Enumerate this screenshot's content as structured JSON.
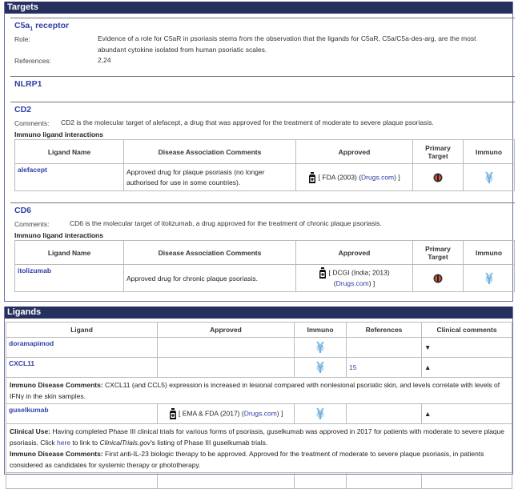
{
  "targets": {
    "title": "Targets",
    "c5a": {
      "name": "C5a",
      "sub": "1",
      "name_suffix": " receptor",
      "role_label": "Role:",
      "role": "Evidence of a role for C5aR in psoriasis stems from the observation that the ligands for C5aR, C5a/C5a-des-arg, are the most abundant cytokine isolated from human psoriatic scales.",
      "refs_label": "References:",
      "refs": "2,24"
    },
    "nlrp1": {
      "name": "NLRP1"
    },
    "cd2": {
      "name": "CD2",
      "comments_label": "Comments:",
      "comments": "CD2 is the molecular target of alefacept, a drug that was approved for the treatment of moderate to severe plaque psoriasis.",
      "sub": "Immuno ligand interactions",
      "headers": [
        "Ligand Name",
        "Disease Association Comments",
        "Approved",
        "Primary Target",
        "Immuno"
      ],
      "row": {
        "ligand": "alefacept",
        "comment": "Approved drug for plaque psoriasis (no longer authorised for use in some countries).",
        "approved_pre": "[ FDA (2003)  (",
        "approved_link": "Drugs.com",
        "approved_post": ") ]"
      }
    },
    "cd6": {
      "name": "CD6",
      "comments_label": "Comments:",
      "comments": "CD6 is the molecular target of itolizumab, a drug approved for the treatment of chronic plaque psoriasis.",
      "sub": "Immuno ligand interactions",
      "headers": [
        "Ligand Name",
        "Disease Association Comments",
        "Approved",
        "Primary Target",
        "Immuno"
      ],
      "row": {
        "ligand": "itolizumab",
        "comment": "Approved drug for chronic plaque psoriasis.",
        "approved_pre": "[ DCGI (India; 2013)",
        "approved_link": "Drugs.com",
        "approved_post": ") ]"
      }
    }
  },
  "ligands": {
    "title": "Ligands",
    "headers": [
      "Ligand",
      "Approved",
      "Immuno",
      "References",
      "Clinical comments"
    ],
    "rows": [
      {
        "name": "doramapimod",
        "refs": "",
        "toggle": "expand"
      },
      {
        "name": "CXCL11",
        "refs": "15",
        "toggle": "collapse",
        "detail_label": "Immuno Disease Comments:",
        "detail": " CXCL11 (and CCL5) expression is increased in lesional compared with nonlesional psoriatic skin, and levels correlate with levels of IFNγ in the skin samples."
      },
      {
        "name": "guselkumab",
        "approved_pre": "[ EMA & FDA (2017) (",
        "approved_link": "Drugs.com",
        "approved_post": ") ]",
        "refs": "",
        "toggle": "collapse",
        "clin_label": "Clinical Use:",
        "clin_1": " Having completed Phase III clinical trials for various forms of psoriasis, guselkumab was approved in 2017 for patients with moderate to severe plaque psoriasis. Click ",
        "clin_link": "here",
        "clin_2": " to link to ",
        "clin_italic": "ClinicalTrials.gov",
        "clin_3": "'s listing of Phase III guselkumab trials.",
        "detail_label": "Immuno Disease Comments:",
        "detail": " First anti-IL-23 biologic therapy to be approved. Approved for the treatment of moderate to severe plaque psoriasis, in patients considered as candidates for systemic therapy or phototherapy."
      }
    ]
  },
  "colors": {
    "header_bg": "#26305e",
    "link": "#2f3fa8",
    "immuno_icon": "#7fb8e0"
  }
}
